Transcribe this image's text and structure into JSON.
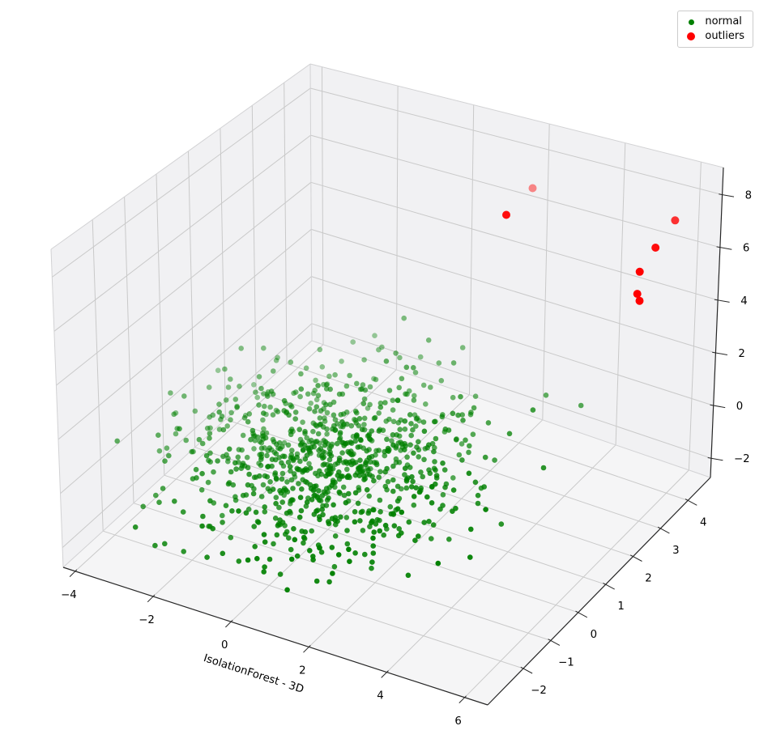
{
  "legend": {
    "position": "upper right",
    "items": [
      {
        "label": "normal",
        "color": "#008000"
      },
      {
        "label": "outliers",
        "color": "#ff0000"
      }
    ]
  },
  "chart_data": {
    "type": "scatter",
    "projection": "3d",
    "title": "",
    "xlabel": "IsolationForest - 3D",
    "ylabel": "",
    "zlabel": "",
    "view": {
      "elev_deg": 30,
      "azim_deg": -60
    },
    "grid": true,
    "legend_position": "upper right",
    "xlim": [
      -4.31,
      6.59
    ],
    "ylim": [
      -3.3,
      4.82
    ],
    "zlim": [
      -2.73,
      9.03
    ],
    "x_ticks": {
      "values": [
        -4,
        -2,
        0,
        2,
        4,
        6
      ],
      "labels": [
        "−4",
        "−2",
        "0",
        "2",
        "4",
        "6"
      ]
    },
    "y_ticks": {
      "values": [
        -2,
        -1,
        0,
        1,
        2,
        3,
        4
      ],
      "labels": [
        "−2",
        "−1",
        "0",
        "1",
        "2",
        "3",
        "4"
      ]
    },
    "z_ticks": {
      "values": [
        -2,
        0,
        2,
        4,
        6,
        8
      ],
      "labels": [
        "−2",
        "0",
        "2",
        "4",
        "6",
        "8"
      ]
    },
    "series": [
      {
        "name": "normal",
        "color": "#008000",
        "marker_radius_px": 3.3,
        "depthshade": true,
        "points_generated": {
          "count": 900,
          "seed": 11,
          "mean": [
            0.15,
            -0.05,
            -0.05
          ],
          "std": [
            1.6,
            1.3,
            0.95
          ],
          "clamp_sigma": 2.8
        }
      },
      {
        "name": "outliers",
        "color": "#ff0000",
        "marker_radius_px": 5,
        "depthshade": true,
        "points": [
          [
            2.65,
            3.45,
            8.0
          ],
          [
            2.16,
            3.21,
            7.0
          ],
          [
            5.65,
            4.45,
            7.0
          ],
          [
            5.3,
            4.26,
            6.0
          ],
          [
            4.95,
            4.2,
            5.0
          ],
          [
            5.0,
            4.07,
            4.3
          ],
          [
            5.03,
            4.12,
            4.0
          ]
        ],
        "alphas": [
          0.45,
          0.95,
          0.8,
          0.95,
          1,
          1,
          1
        ]
      }
    ],
    "colors": {
      "pane_wall": "#f1f1f3",
      "pane_floor": "#f5f5f6",
      "grid_line": "#c9c9c9",
      "pane_edge": "#d2d2d4",
      "axis_line": "#262626",
      "tick_text": "#000000"
    }
  }
}
